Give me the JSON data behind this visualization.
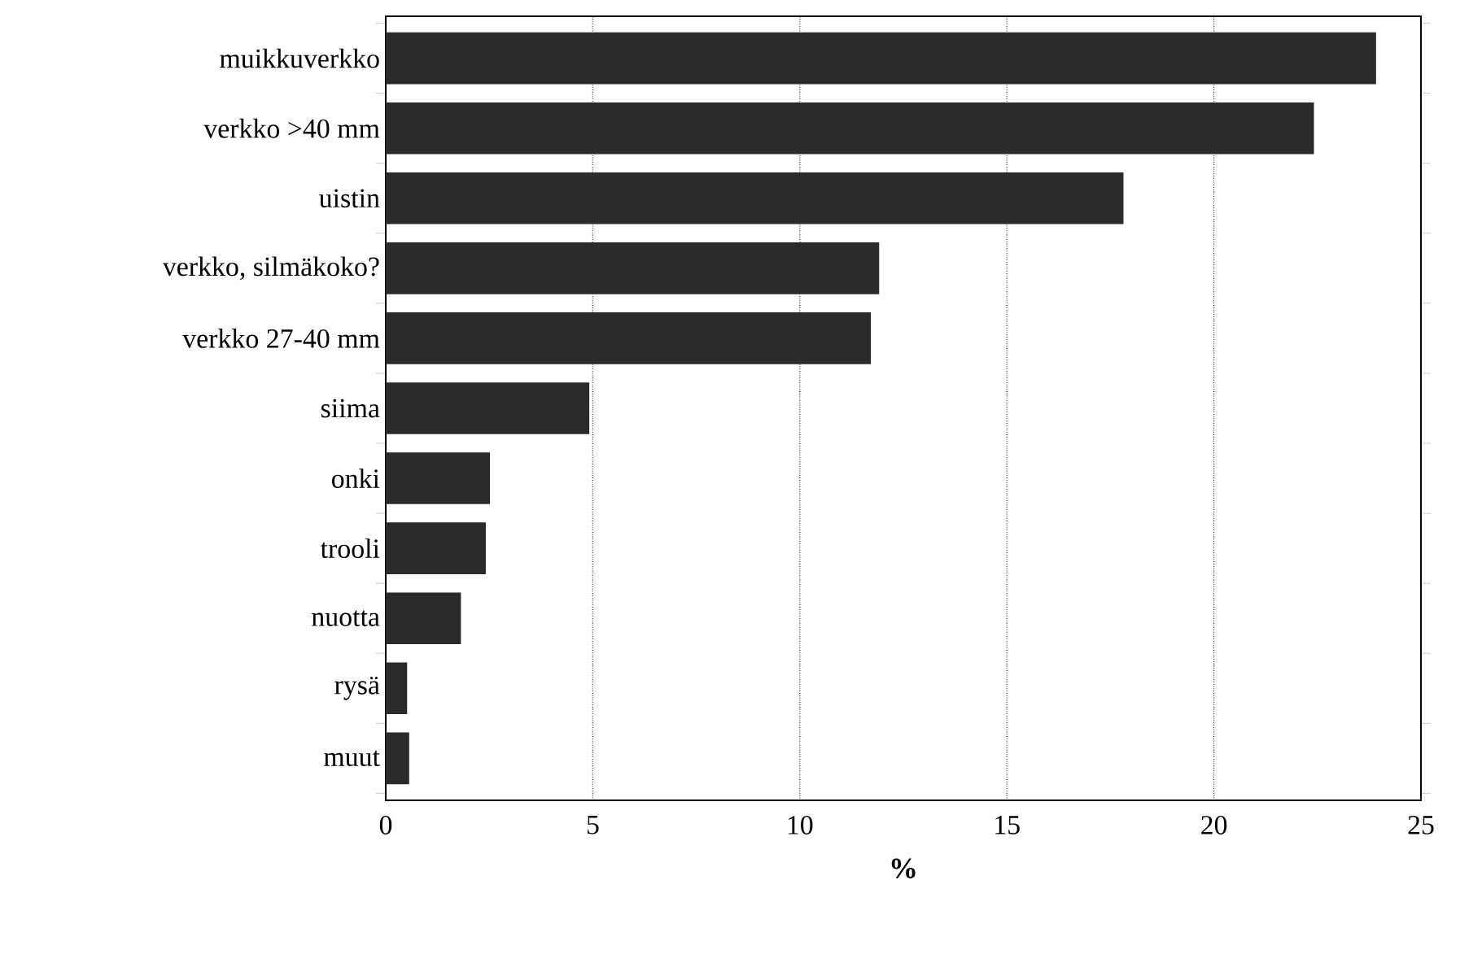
{
  "chart_data": {
    "type": "bar",
    "orientation": "horizontal",
    "xlabel": "%",
    "categories": [
      "muikkuverkko",
      "verkko >40 mm",
      "uistin",
      "verkko, silmäkoko?",
      "verkko 27-40 mm",
      "siima",
      "onki",
      "trooli",
      "nuotta",
      "rysä",
      "muut"
    ],
    "values": [
      23.9,
      22.4,
      17.8,
      11.9,
      11.7,
      4.9,
      2.5,
      2.4,
      1.8,
      0.5,
      0.55
    ],
    "color": "#2b2b2b",
    "xlim": [
      0,
      25
    ],
    "xticks": [
      0,
      5,
      10,
      15,
      20,
      25
    ],
    "grid": "x"
  }
}
